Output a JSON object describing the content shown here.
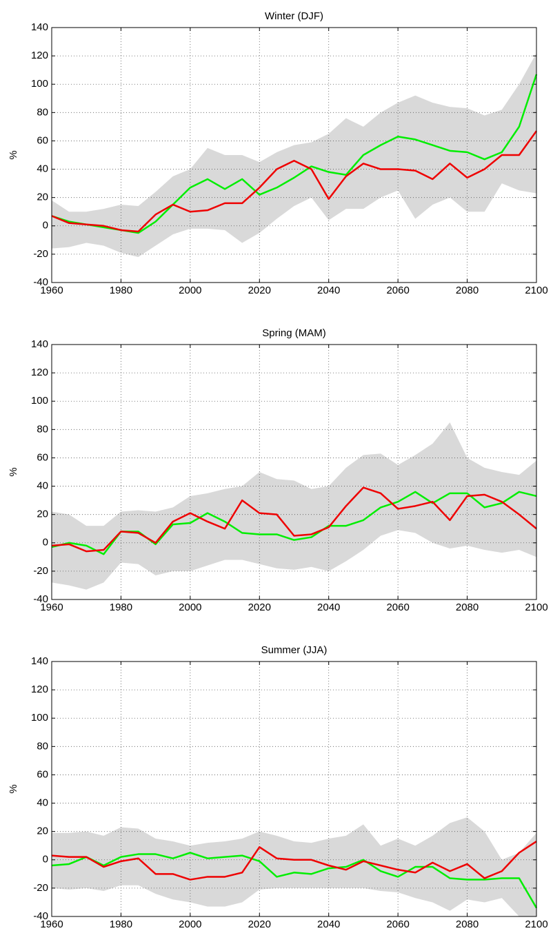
{
  "chart_data": [
    {
      "type": "line",
      "title": "Winter (DJF)",
      "ylabel": "%",
      "x": [
        1960,
        1965,
        1970,
        1975,
        1980,
        1985,
        1990,
        1995,
        2000,
        2005,
        2010,
        2015,
        2020,
        2025,
        2030,
        2035,
        2040,
        2045,
        2050,
        2055,
        2060,
        2065,
        2070,
        2075,
        2080,
        2085,
        2090,
        2095,
        2100
      ],
      "band": {
        "color": "#d9d9d9",
        "lower": [
          -16,
          -15,
          -12,
          -14,
          -19,
          -22,
          -14,
          -6,
          -2,
          -2,
          -3,
          -12,
          -5,
          5,
          14,
          20,
          4,
          12,
          12,
          20,
          25,
          5,
          15,
          20,
          10,
          10,
          30,
          25,
          23
        ],
        "upper": [
          18,
          10,
          10,
          12,
          15,
          14,
          24,
          35,
          40,
          55,
          50,
          50,
          45,
          52,
          57,
          59,
          65,
          76,
          70,
          80,
          87,
          92,
          87,
          84,
          83,
          78,
          82,
          100,
          122
        ]
      },
      "series": [
        {
          "color": "#00ee00",
          "values": [
            7,
            3,
            1,
            -1,
            -3,
            -5,
            3,
            15,
            27,
            33,
            26,
            33,
            22,
            27,
            34,
            42,
            38,
            36,
            50,
            57,
            63,
            61,
            57,
            53,
            52,
            47,
            52,
            70,
            107
          ]
        },
        {
          "color": "#ee0000",
          "values": [
            7,
            2,
            1,
            0,
            -3,
            -4,
            8,
            15,
            10,
            11,
            16,
            16,
            27,
            40,
            46,
            40,
            19,
            35,
            44,
            40,
            40,
            39,
            33,
            44,
            34,
            40,
            50,
            50,
            67
          ]
        }
      ],
      "xlim": [
        1960,
        2100
      ],
      "xticks": [
        1960,
        1980,
        2000,
        2020,
        2040,
        2060,
        2080,
        2100
      ],
      "ylim": [
        -40,
        140
      ],
      "yticks": [
        -40,
        -20,
        0,
        20,
        40,
        60,
        80,
        100,
        120,
        140
      ],
      "grid": true
    },
    {
      "type": "line",
      "title": "Spring (MAM)",
      "ylabel": "%",
      "x": [
        1960,
        1965,
        1970,
        1975,
        1980,
        1985,
        1990,
        1995,
        2000,
        2005,
        2010,
        2015,
        2020,
        2025,
        2030,
        2035,
        2040,
        2045,
        2050,
        2055,
        2060,
        2065,
        2070,
        2075,
        2080,
        2085,
        2090,
        2095,
        2100
      ],
      "band": {
        "color": "#d9d9d9",
        "lower": [
          -28,
          -30,
          -33,
          -28,
          -14,
          -15,
          -23,
          -20,
          -20,
          -16,
          -12,
          -12,
          -15,
          -18,
          -19,
          -17,
          -20,
          -13,
          -5,
          5,
          9,
          7,
          0,
          -4,
          -2,
          -5,
          -7,
          -5,
          -10
        ],
        "upper": [
          22,
          20,
          12,
          12,
          22,
          23,
          22,
          25,
          33,
          35,
          38,
          40,
          50,
          45,
          44,
          38,
          40,
          53,
          62,
          63,
          55,
          62,
          70,
          85,
          60,
          53,
          50,
          48,
          58
        ]
      },
      "series": [
        {
          "color": "#00ee00",
          "values": [
            -3,
            0,
            -2,
            -8,
            8,
            8,
            -1,
            13,
            14,
            21,
            15,
            7,
            6,
            6,
            2,
            4,
            12,
            12,
            16,
            25,
            29,
            36,
            28,
            35,
            35,
            25,
            28,
            36,
            33
          ]
        },
        {
          "color": "#ee0000",
          "values": [
            -2,
            -1,
            -6,
            -5,
            8,
            7,
            0,
            15,
            21,
            15,
            10,
            30,
            21,
            20,
            5,
            6,
            11,
            26,
            39,
            35,
            24,
            26,
            29,
            16,
            33,
            34,
            29,
            20,
            10
          ]
        }
      ],
      "xlim": [
        1960,
        2100
      ],
      "xticks": [
        1960,
        1980,
        2000,
        2020,
        2040,
        2060,
        2080,
        2100
      ],
      "ylim": [
        -40,
        140
      ],
      "yticks": [
        -40,
        -20,
        0,
        20,
        40,
        60,
        80,
        100,
        120,
        140
      ],
      "grid": true
    },
    {
      "type": "line",
      "title": "Summer (JJA)",
      "ylabel": "%",
      "x": [
        1960,
        1965,
        1970,
        1975,
        1980,
        1985,
        1990,
        1995,
        2000,
        2005,
        2010,
        2015,
        2020,
        2025,
        2030,
        2035,
        2040,
        2045,
        2050,
        2055,
        2060,
        2065,
        2070,
        2075,
        2080,
        2085,
        2090,
        2095,
        2100
      ],
      "band": {
        "color": "#d9d9d9",
        "lower": [
          -20,
          -21,
          -20,
          -22,
          -18,
          -18,
          -24,
          -28,
          -30,
          -33,
          -33,
          -30,
          -21,
          -20,
          -20,
          -20,
          -20,
          -20,
          -20,
          -22,
          -23,
          -27,
          -30,
          -36,
          -28,
          -30,
          -27,
          -40,
          -40
        ],
        "upper": [
          19,
          19,
          20,
          17,
          23,
          22,
          15,
          13,
          10,
          12,
          13,
          15,
          20,
          17,
          13,
          12,
          15,
          17,
          25,
          10,
          15,
          10,
          17,
          26,
          30,
          20,
          0,
          5,
          19
        ]
      },
      "series": [
        {
          "color": "#00ee00",
          "values": [
            -4,
            -3,
            2,
            -4,
            2,
            4,
            4,
            1,
            5,
            1,
            2,
            3,
            -1,
            -12,
            -9,
            -10,
            -6,
            -5,
            0,
            -8,
            -12,
            -5,
            -5,
            -13,
            -14,
            -14,
            -13,
            -13,
            -34
          ]
        },
        {
          "color": "#ee0000",
          "values": [
            3,
            2,
            2,
            -5,
            -1,
            1,
            -10,
            -10,
            -14,
            -12,
            -12,
            -9,
            9,
            1,
            0,
            0,
            -4,
            -7,
            -1,
            -4,
            -7,
            -9,
            -2,
            -8,
            -3,
            -13,
            -8,
            5,
            13
          ]
        }
      ],
      "xlim": [
        1960,
        2100
      ],
      "xticks": [
        1960,
        1980,
        2000,
        2020,
        2040,
        2060,
        2080,
        2100
      ],
      "ylim": [
        -40,
        140
      ],
      "yticks": [
        -40,
        -20,
        0,
        20,
        40,
        60,
        80,
        100,
        120,
        140
      ],
      "grid": true
    }
  ]
}
